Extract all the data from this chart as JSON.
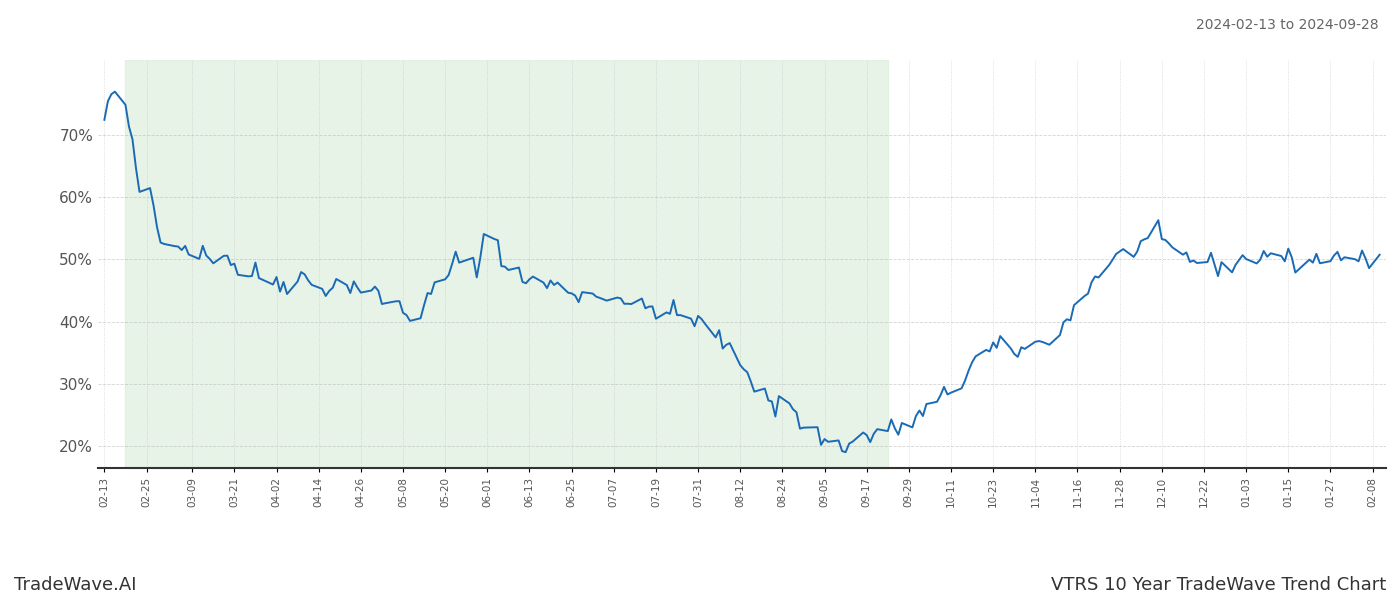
{
  "title_top_right": "2024-02-13 to 2024-09-28",
  "bottom_left_label": "TradeWave.AI",
  "bottom_right_label": "VTRS 10 Year TradeWave Trend Chart",
  "background_color": "#ffffff",
  "line_color": "#1a6ab5",
  "shaded_region_color": "#d6ead6",
  "shaded_alpha": 0.55,
  "shaded_start": "2024-02-19",
  "shaded_end": "2024-09-23",
  "ylim": [
    0.165,
    0.82
  ],
  "yticks": [
    0.2,
    0.3,
    0.4,
    0.5,
    0.6,
    0.7
  ],
  "grid_color": "#aaaaaa",
  "grid_alpha": 0.5,
  "line_width": 1.4,
  "dates": [
    "2024-02-13",
    "2024-02-14",
    "2024-02-15",
    "2024-02-16",
    "2024-02-19",
    "2024-02-20",
    "2024-02-21",
    "2024-02-22",
    "2024-02-23",
    "2024-02-26",
    "2024-02-27",
    "2024-02-28",
    "2024-02-29",
    "2024-03-01",
    "2024-03-04",
    "2024-03-05",
    "2024-03-06",
    "2024-03-07",
    "2024-03-08",
    "2024-03-11",
    "2024-03-12",
    "2024-03-13",
    "2024-03-14",
    "2024-03-15",
    "2024-03-18",
    "2024-03-19",
    "2024-03-20",
    "2024-03-21",
    "2024-03-22",
    "2024-03-25",
    "2024-03-26",
    "2024-03-27",
    "2024-03-28",
    "2024-04-01",
    "2024-04-02",
    "2024-04-03",
    "2024-04-04",
    "2024-04-05",
    "2024-04-08",
    "2024-04-09",
    "2024-04-10",
    "2024-04-11",
    "2024-04-12",
    "2024-04-15",
    "2024-04-16",
    "2024-04-17",
    "2024-04-18",
    "2024-04-19",
    "2024-04-22",
    "2024-04-23",
    "2024-04-24",
    "2024-04-25",
    "2024-04-26",
    "2024-04-29",
    "2024-04-30",
    "2024-05-01",
    "2024-05-02",
    "2024-05-03",
    "2024-05-06",
    "2024-05-07",
    "2024-05-08",
    "2024-05-09",
    "2024-05-10",
    "2024-05-13",
    "2024-05-14",
    "2024-05-15",
    "2024-05-16",
    "2024-05-17",
    "2024-05-20",
    "2024-05-21",
    "2024-05-22",
    "2024-05-23",
    "2024-05-24",
    "2024-05-28",
    "2024-05-29",
    "2024-05-30",
    "2024-05-31",
    "2024-06-03",
    "2024-06-04",
    "2024-06-05",
    "2024-06-06",
    "2024-06-07",
    "2024-06-10",
    "2024-06-11",
    "2024-06-12",
    "2024-06-13",
    "2024-06-14",
    "2024-06-17",
    "2024-06-18",
    "2024-06-19",
    "2024-06-20",
    "2024-06-21",
    "2024-06-24",
    "2024-06-25",
    "2024-06-26",
    "2024-06-27",
    "2024-06-28",
    "2024-07-01",
    "2024-07-02",
    "2024-07-03",
    "2024-07-05",
    "2024-07-08",
    "2024-07-09",
    "2024-07-10",
    "2024-07-11",
    "2024-07-12",
    "2024-07-15",
    "2024-07-16",
    "2024-07-17",
    "2024-07-18",
    "2024-07-19",
    "2024-07-22",
    "2024-07-23",
    "2024-07-24",
    "2024-07-25",
    "2024-07-26",
    "2024-07-29",
    "2024-07-30",
    "2024-07-31",
    "2024-08-01",
    "2024-08-02",
    "2024-08-05",
    "2024-08-06",
    "2024-08-07",
    "2024-08-08",
    "2024-08-09",
    "2024-08-12",
    "2024-08-13",
    "2024-08-14",
    "2024-08-15",
    "2024-08-16",
    "2024-08-19",
    "2024-08-20",
    "2024-08-21",
    "2024-08-22",
    "2024-08-23",
    "2024-08-26",
    "2024-08-27",
    "2024-08-28",
    "2024-08-29",
    "2024-08-30",
    "2024-09-03",
    "2024-09-04",
    "2024-09-05",
    "2024-09-06",
    "2024-09-09",
    "2024-09-10",
    "2024-09-11",
    "2024-09-12",
    "2024-09-13",
    "2024-09-16",
    "2024-09-17",
    "2024-09-18",
    "2024-09-19",
    "2024-09-20",
    "2024-09-23",
    "2024-09-24",
    "2024-09-25",
    "2024-09-26",
    "2024-09-27",
    "2024-09-30",
    "2024-10-01",
    "2024-10-02",
    "2024-10-03",
    "2024-10-04",
    "2024-10-07",
    "2024-10-08",
    "2024-10-09",
    "2024-10-10",
    "2024-10-11",
    "2024-10-14",
    "2024-10-15",
    "2024-10-16",
    "2024-10-17",
    "2024-10-18",
    "2024-10-21",
    "2024-10-22",
    "2024-10-23",
    "2024-10-24",
    "2024-10-25",
    "2024-10-28",
    "2024-10-29",
    "2024-10-30",
    "2024-10-31",
    "2024-11-01",
    "2024-11-04",
    "2024-11-05",
    "2024-11-06",
    "2024-11-07",
    "2024-11-08",
    "2024-11-11",
    "2024-11-12",
    "2024-11-13",
    "2024-11-14",
    "2024-11-15",
    "2024-11-18",
    "2024-11-19",
    "2024-11-20",
    "2024-11-21",
    "2024-11-22",
    "2024-11-25",
    "2024-11-26",
    "2024-11-27",
    "2024-11-29",
    "2024-12-02",
    "2024-12-03",
    "2024-12-04",
    "2024-12-05",
    "2024-12-06",
    "2024-12-09",
    "2024-12-10",
    "2024-12-11",
    "2024-12-12",
    "2024-12-13",
    "2024-12-16",
    "2024-12-17",
    "2024-12-18",
    "2024-12-19",
    "2024-12-20",
    "2024-12-23",
    "2024-12-24",
    "2024-12-26",
    "2024-12-27",
    "2024-12-30",
    "2024-12-31",
    "2025-01-02",
    "2025-01-03",
    "2025-01-06",
    "2025-01-07",
    "2025-01-08",
    "2025-01-09",
    "2025-01-10",
    "2025-01-13",
    "2025-01-14",
    "2025-01-15",
    "2025-01-16",
    "2025-01-17",
    "2025-01-21",
    "2025-01-22",
    "2025-01-23",
    "2025-01-24",
    "2025-01-27",
    "2025-01-28",
    "2025-01-29",
    "2025-01-30",
    "2025-01-31",
    "2025-02-03",
    "2025-02-04",
    "2025-02-05",
    "2025-02-06",
    "2025-02-07",
    "2025-02-10"
  ],
  "values": [
    0.72,
    0.755,
    0.76,
    0.757,
    0.75,
    0.715,
    0.68,
    0.64,
    0.612,
    0.61,
    0.59,
    0.555,
    0.525,
    0.54,
    0.535,
    0.525,
    0.523,
    0.519,
    0.515,
    0.512,
    0.51,
    0.508,
    0.5,
    0.505,
    0.51,
    0.505,
    0.5,
    0.49,
    0.48,
    0.475,
    0.478,
    0.48,
    0.47,
    0.468,
    0.465,
    0.458,
    0.462,
    0.46,
    0.475,
    0.478,
    0.47,
    0.465,
    0.46,
    0.455,
    0.453,
    0.455,
    0.458,
    0.46,
    0.456,
    0.46,
    0.462,
    0.458,
    0.452,
    0.445,
    0.448,
    0.442,
    0.435,
    0.432,
    0.43,
    0.425,
    0.418,
    0.412,
    0.41,
    0.415,
    0.42,
    0.435,
    0.445,
    0.455,
    0.465,
    0.48,
    0.49,
    0.5,
    0.495,
    0.49,
    0.492,
    0.496,
    0.54,
    0.535,
    0.53,
    0.505,
    0.49,
    0.48,
    0.475,
    0.468,
    0.468,
    0.472,
    0.465,
    0.46,
    0.458,
    0.462,
    0.458,
    0.455,
    0.452,
    0.448,
    0.445,
    0.443,
    0.445,
    0.443,
    0.44,
    0.44,
    0.445,
    0.442,
    0.44,
    0.435,
    0.43,
    0.425,
    0.422,
    0.42,
    0.422,
    0.425,
    0.42,
    0.415,
    0.412,
    0.415,
    0.412,
    0.408,
    0.405,
    0.402,
    0.4,
    0.398,
    0.39,
    0.382,
    0.375,
    0.368,
    0.358,
    0.348,
    0.338,
    0.328,
    0.318,
    0.308,
    0.3,
    0.292,
    0.282,
    0.268,
    0.255,
    0.268,
    0.275,
    0.262,
    0.248,
    0.238,
    0.228,
    0.22,
    0.215,
    0.21,
    0.205,
    0.203,
    0.202,
    0.201,
    0.2,
    0.205,
    0.22,
    0.215,
    0.212,
    0.218,
    0.225,
    0.23,
    0.228,
    0.225,
    0.228,
    0.232,
    0.238,
    0.242,
    0.248,
    0.255,
    0.26,
    0.268,
    0.275,
    0.28,
    0.285,
    0.292,
    0.3,
    0.312,
    0.322,
    0.332,
    0.342,
    0.348,
    0.352,
    0.355,
    0.36,
    0.355,
    0.352,
    0.355,
    0.352,
    0.355,
    0.358,
    0.362,
    0.365,
    0.368,
    0.372,
    0.375,
    0.382,
    0.392,
    0.402,
    0.412,
    0.425,
    0.438,
    0.452,
    0.462,
    0.472,
    0.48,
    0.488,
    0.495,
    0.5,
    0.508,
    0.515,
    0.52,
    0.525,
    0.528,
    0.53,
    0.532,
    0.528,
    0.522,
    0.518,
    0.514,
    0.51,
    0.505,
    0.502,
    0.5,
    0.498,
    0.495,
    0.492,
    0.488,
    0.49,
    0.492,
    0.495,
    0.498,
    0.5,
    0.502,
    0.505,
    0.508,
    0.51,
    0.508,
    0.505,
    0.502,
    0.5,
    0.498,
    0.495,
    0.498,
    0.5,
    0.502,
    0.5,
    0.498,
    0.502,
    0.505,
    0.508,
    0.506,
    0.504,
    0.502,
    0.5,
    0.498,
    0.496,
    0.5
  ],
  "xtick_labels": [
    "02-13",
    "02-25",
    "03-09",
    "03-21",
    "04-02",
    "04-14",
    "04-26",
    "05-08",
    "05-20",
    "06-01",
    "06-13",
    "06-25",
    "07-07",
    "07-19",
    "07-31",
    "08-12",
    "08-24",
    "09-05",
    "09-17",
    "09-29",
    "10-11",
    "10-23",
    "11-04",
    "11-16",
    "11-28",
    "12-10",
    "12-22",
    "01-03",
    "01-15",
    "01-27",
    "02-08"
  ],
  "xtick_dates": [
    "2024-02-13",
    "2024-02-25",
    "2024-03-09",
    "2024-03-21",
    "2024-04-02",
    "2024-04-14",
    "2024-04-26",
    "2024-05-08",
    "2024-05-20",
    "2024-06-01",
    "2024-06-13",
    "2024-06-25",
    "2024-07-07",
    "2024-07-19",
    "2024-07-31",
    "2024-08-12",
    "2024-08-24",
    "2024-09-05",
    "2024-09-17",
    "2024-09-29",
    "2024-10-11",
    "2024-10-23",
    "2024-11-04",
    "2024-11-16",
    "2024-11-28",
    "2024-12-10",
    "2024-12-22",
    "2025-01-03",
    "2025-01-15",
    "2025-01-27",
    "2025-02-08"
  ]
}
